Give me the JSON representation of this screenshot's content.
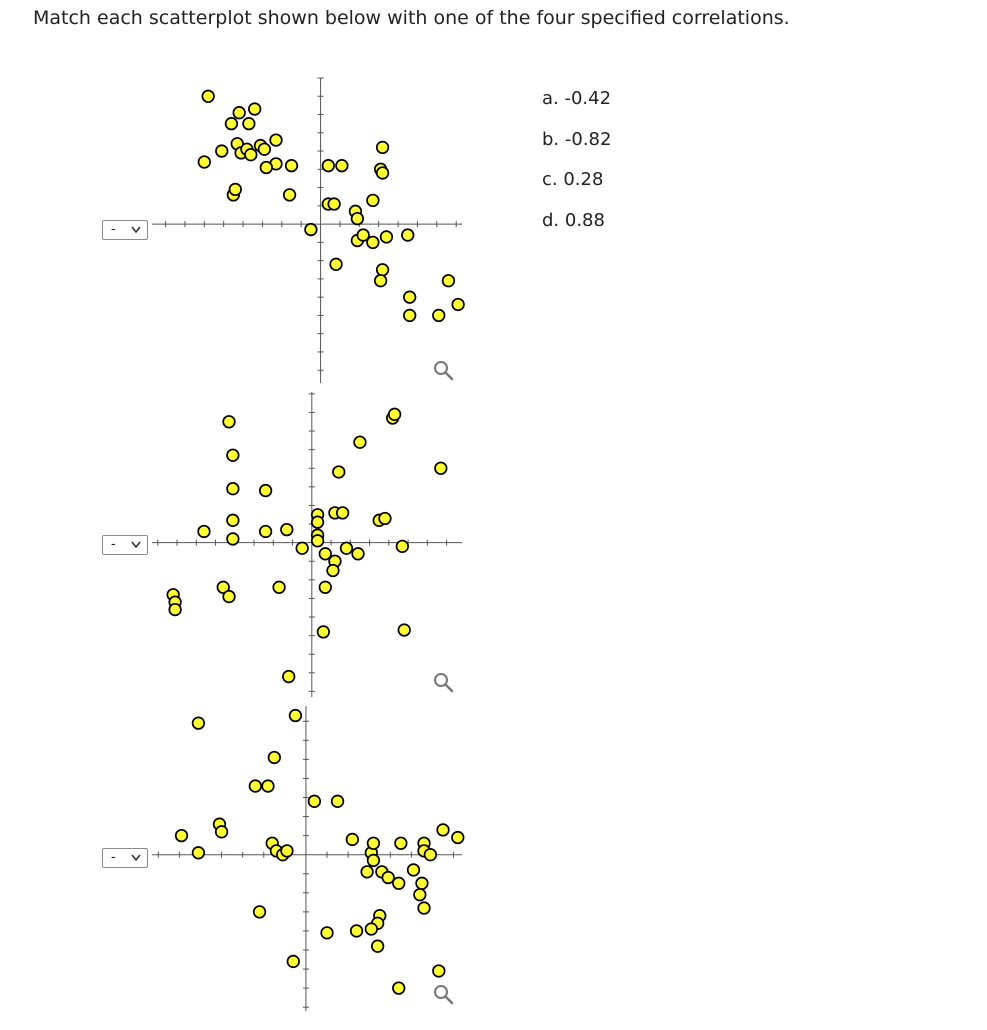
{
  "question": "Match each scatterplot shown below with one of the four specified correlations.",
  "options": [
    "a. -0.42",
    "b. -0.82",
    "c. 0.28",
    "d. 0.88"
  ],
  "selects": [
    {
      "value": "-"
    },
    {
      "value": "-"
    },
    {
      "value": "-"
    }
  ],
  "colors": {
    "point_fill": "#ffff33",
    "point_stroke": "#000000",
    "axis": "#555555",
    "zoom": "#777777"
  },
  "icons": {
    "dropdown": "chevron-down-icon",
    "zoom": "magnifier-icon"
  },
  "chart_data": [
    {
      "type": "scatter",
      "xlim": [
        -8.7,
        7.3
      ],
      "ylim": [
        -8.7,
        8
      ],
      "points": [
        [
          -6,
          3.4
        ],
        [
          -5.8,
          7
        ],
        [
          -4.2,
          6.1
        ],
        [
          -3.4,
          6.3
        ],
        [
          -3.7,
          5.5
        ],
        [
          -4.6,
          5.5
        ],
        [
          -4.3,
          4.4
        ],
        [
          -4.1,
          3.9
        ],
        [
          -5.1,
          4
        ],
        [
          -3.8,
          4.1
        ],
        [
          -3.1,
          4.3
        ],
        [
          -2.9,
          4.1
        ],
        [
          -2.3,
          4.6
        ],
        [
          -2.3,
          3.3
        ],
        [
          -4.5,
          1.6
        ],
        [
          -4.4,
          1.9
        ],
        [
          -3.6,
          3.8
        ],
        [
          -2.8,
          3.1
        ],
        [
          -1.5,
          3.2
        ],
        [
          -1.6,
          1.6
        ],
        [
          0.4,
          1.1
        ],
        [
          0.7,
          1.1
        ],
        [
          1.8,
          0.7
        ],
        [
          1.9,
          0.3
        ],
        [
          0.4,
          3.2
        ],
        [
          1.1,
          3.2
        ],
        [
          1.9,
          -0.9
        ],
        [
          2.2,
          -0.6
        ],
        [
          2.7,
          -1
        ],
        [
          3.4,
          -0.7
        ],
        [
          4.5,
          -0.6
        ],
        [
          2.7,
          1.3
        ],
        [
          3.1,
          3
        ],
        [
          3.2,
          2.8
        ],
        [
          3.2,
          4.2
        ],
        [
          0.8,
          -2.2
        ],
        [
          3.2,
          -2.5
        ],
        [
          4.6,
          -4
        ],
        [
          3.1,
          -3.1
        ],
        [
          7.1,
          -4.4
        ],
        [
          6.6,
          -3.1
        ],
        [
          6.1,
          -5
        ],
        [
          4.6,
          -5
        ],
        [
          -0.5,
          -0.3
        ]
      ]
    },
    {
      "type": "scatter",
      "xlim": [
        -8.3,
        7.8
      ],
      "ylim": [
        -8.3,
        8.1
      ],
      "points": [
        [
          -4.3,
          6.5
        ],
        [
          -4.1,
          4.7
        ],
        [
          -4.1,
          2.9
        ],
        [
          -2.4,
          2.8
        ],
        [
          -4.1,
          1.2
        ],
        [
          -4.1,
          0.2
        ],
        [
          -5.6,
          0.6
        ],
        [
          -2.4,
          0.6
        ],
        [
          -1.3,
          0.7
        ],
        [
          0.3,
          1.5
        ],
        [
          0.3,
          1.1
        ],
        [
          0.3,
          0.4
        ],
        [
          0.3,
          0.1
        ],
        [
          1.2,
          1.6
        ],
        [
          1.6,
          1.6
        ],
        [
          3.5,
          1.2
        ],
        [
          3.8,
          1.3
        ],
        [
          -0.5,
          -0.3
        ],
        [
          0.7,
          -0.6
        ],
        [
          1.2,
          -1
        ],
        [
          1.8,
          -0.3
        ],
        [
          2.4,
          -0.6
        ],
        [
          1.1,
          -1.5
        ],
        [
          0.7,
          -2.4
        ],
        [
          1.4,
          3.8
        ],
        [
          2.5,
          5.4
        ],
        [
          4.2,
          6.7
        ],
        [
          4.3,
          6.9
        ],
        [
          6.7,
          4
        ],
        [
          -7.2,
          -2.8
        ],
        [
          -7.1,
          -3.2
        ],
        [
          -7.1,
          -3.6
        ],
        [
          -4.6,
          -2.4
        ],
        [
          -4.3,
          -2.9
        ],
        [
          -1.7,
          -2.4
        ],
        [
          0.6,
          -4.8
        ],
        [
          4.8,
          -4.7
        ],
        [
          -1.2,
          -7.2
        ],
        [
          4.7,
          -0.2
        ]
      ]
    },
    {
      "type": "scatter",
      "xlim": [
        -7.3,
        7.4
      ],
      "ylim": [
        -8.2,
        7.8
      ],
      "points": [
        [
          -5.1,
          6.9
        ],
        [
          -0.5,
          7.3
        ],
        [
          -1.5,
          5.1
        ],
        [
          -2.4,
          3.6
        ],
        [
          -1.8,
          3.6
        ],
        [
          0.4,
          2.8
        ],
        [
          1.5,
          2.8
        ],
        [
          -4.1,
          1.6
        ],
        [
          -4,
          1.2
        ],
        [
          -5.9,
          1
        ],
        [
          -5.1,
          0.1
        ],
        [
          -1.6,
          0.6
        ],
        [
          -1.4,
          0.2
        ],
        [
          -1.1,
          0
        ],
        [
          -0.9,
          0.2
        ],
        [
          2.2,
          0.8
        ],
        [
          3.1,
          0.1
        ],
        [
          3.2,
          -0.3
        ],
        [
          3.2,
          0.6
        ],
        [
          4.5,
          0.6
        ],
        [
          5.6,
          0.6
        ],
        [
          5.6,
          0.2
        ],
        [
          5.9,
          0
        ],
        [
          6.5,
          1.3
        ],
        [
          7.2,
          0.9
        ],
        [
          2.9,
          -0.9
        ],
        [
          3.6,
          -0.9
        ],
        [
          3.9,
          -1.2
        ],
        [
          4.4,
          -1.5
        ],
        [
          5.5,
          -1.5
        ],
        [
          5.4,
          -2.1
        ],
        [
          5.6,
          -2.8
        ],
        [
          5.1,
          -0.8
        ],
        [
          3.5,
          -3.2
        ],
        [
          3.4,
          -3.6
        ],
        [
          3.1,
          -3.9
        ],
        [
          2.4,
          -4
        ],
        [
          1,
          -4.1
        ],
        [
          3.4,
          -4.8
        ],
        [
          -2.2,
          -3
        ],
        [
          -0.6,
          -5.6
        ],
        [
          6.3,
          -6.1
        ],
        [
          4.4,
          -7
        ]
      ]
    }
  ]
}
